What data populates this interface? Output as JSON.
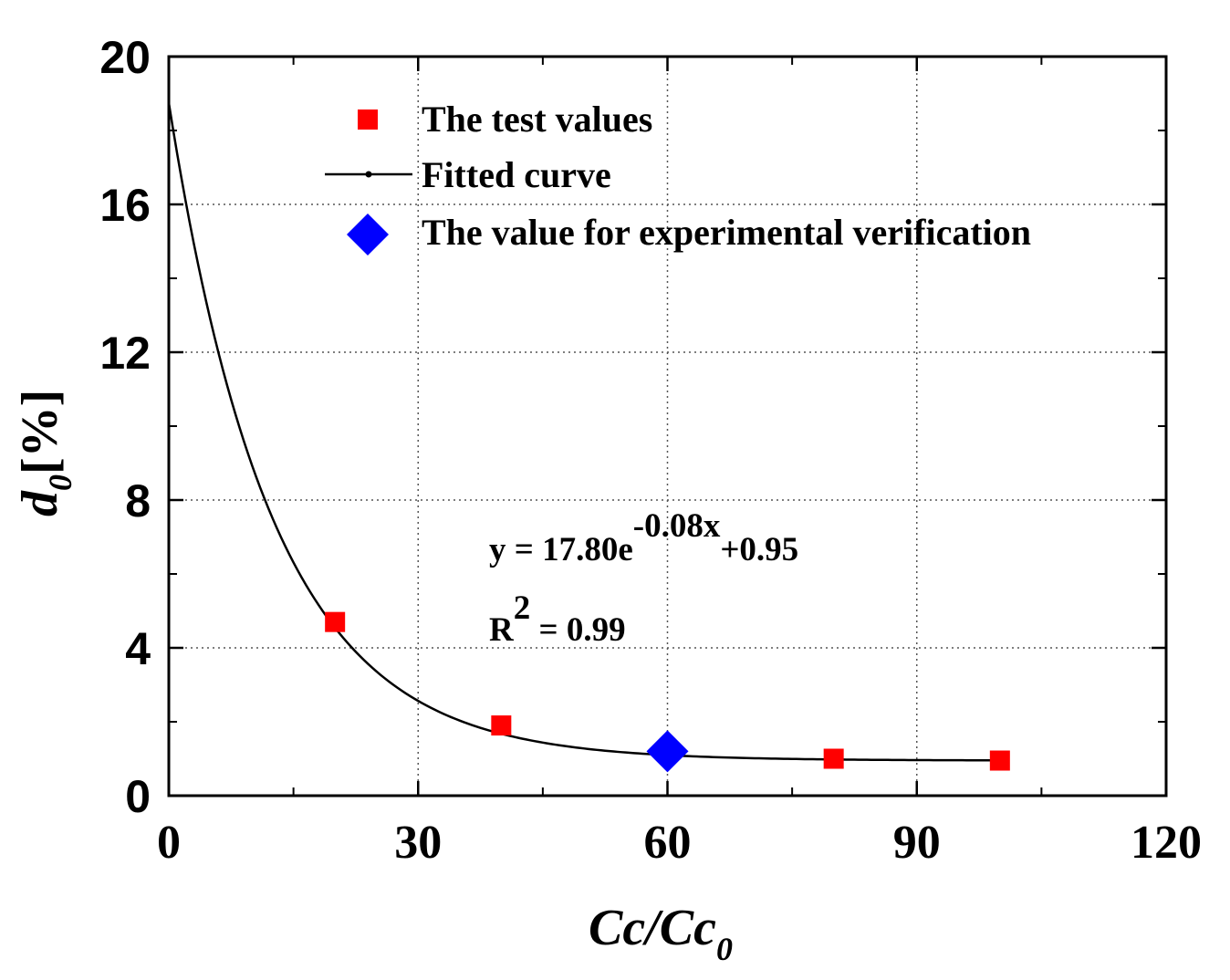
{
  "chart_data": {
    "type": "scatter",
    "xlabel": {
      "main": "Cc/Cc",
      "sub": "0"
    },
    "ylabel": {
      "main": "d",
      "sub": "0",
      "unit": "[%]"
    },
    "xlim": [
      0,
      120
    ],
    "ylim": [
      0,
      20
    ],
    "x_ticks": [
      0,
      30,
      60,
      90,
      120
    ],
    "x_tick_labels": [
      "0",
      "30",
      "60",
      "90",
      "120"
    ],
    "y_ticks": [
      0,
      4,
      8,
      12,
      16,
      20
    ],
    "y_tick_labels": [
      "0",
      "4",
      "8",
      "12",
      "16",
      "20"
    ],
    "grid": true,
    "legend_position": "top",
    "series": [
      {
        "name": "The test values",
        "kind": "scatter",
        "marker": "square",
        "color": "#ff0000",
        "x": [
          20,
          40,
          80,
          100
        ],
        "y": [
          4.7,
          1.9,
          1.0,
          0.95
        ]
      },
      {
        "name": "Fitted curve",
        "kind": "line",
        "color": "#000000",
        "equation": {
          "a": 17.8,
          "b": -0.08,
          "c": 0.95
        },
        "x_range": [
          0,
          100
        ]
      },
      {
        "name": "The value for experimental verification",
        "kind": "scatter",
        "marker": "diamond",
        "color": "#0000ff",
        "x": [
          60
        ],
        "y": [
          1.2
        ]
      }
    ],
    "annotations": {
      "equation": {
        "prefix": "y = 17.80e",
        "exponent": "-0.08x",
        "suffix": "+0.95"
      },
      "r2": {
        "base": "R",
        "exponent": "2",
        "suffix": " = 0.99"
      }
    }
  }
}
